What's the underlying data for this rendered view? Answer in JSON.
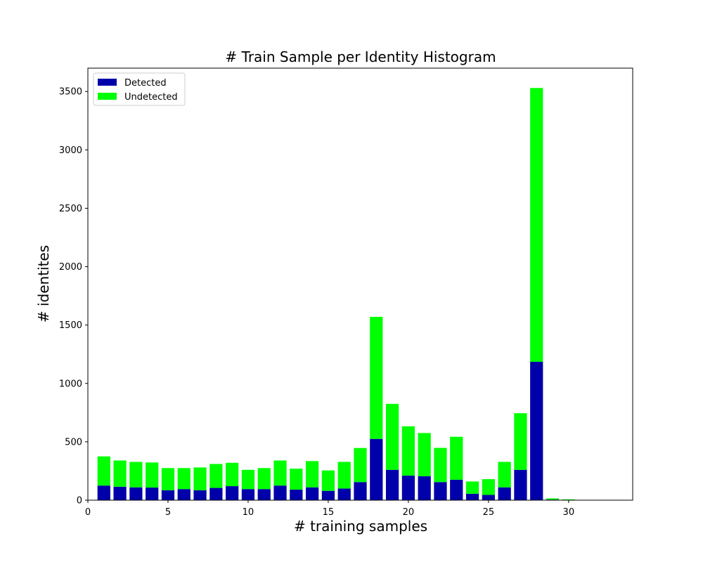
{
  "chart_data": {
    "type": "bar",
    "stacked": true,
    "title": "# Train Sample per Identity Histogram",
    "xlabel": "# training samples",
    "ylabel": "# identites",
    "xlim": [
      0,
      34
    ],
    "ylim": [
      0,
      3700
    ],
    "x_ticks": [
      0,
      5,
      10,
      15,
      20,
      25,
      30
    ],
    "y_ticks": [
      0,
      500,
      1000,
      1500,
      2000,
      2500,
      3000,
      3500
    ],
    "grid": false,
    "legend_position": "top-left",
    "x": [
      1,
      2,
      3,
      4,
      5,
      6,
      7,
      8,
      9,
      10,
      11,
      12,
      13,
      14,
      15,
      16,
      17,
      18,
      19,
      20,
      21,
      22,
      23,
      24,
      25,
      26,
      27,
      28,
      29,
      30
    ],
    "series": [
      {
        "name": "Detected",
        "color": "#0000aa",
        "values": [
          125,
          115,
          110,
          108,
          85,
          95,
          85,
          105,
          120,
          95,
          95,
          125,
          90,
          110,
          80,
          100,
          155,
          525,
          260,
          210,
          205,
          155,
          175,
          55,
          45,
          110,
          260,
          1185,
          5,
          2
        ]
      },
      {
        "name": "Undetected",
        "color": "#00ff00",
        "values": [
          250,
          225,
          218,
          215,
          190,
          180,
          195,
          205,
          200,
          165,
          180,
          215,
          180,
          225,
          175,
          228,
          292,
          1045,
          565,
          423,
          370,
          293,
          368,
          105,
          135,
          218,
          485,
          2345,
          10,
          5
        ]
      }
    ]
  }
}
